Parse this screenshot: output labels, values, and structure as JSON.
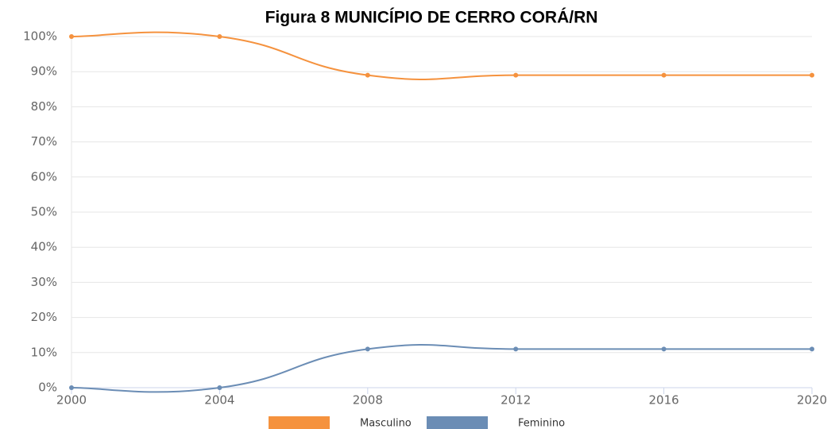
{
  "chart_data": {
    "type": "line",
    "title": "Figura 8 MUNICÍPIO DE CERRO CORÁ/RN",
    "x": [
      2000,
      2004,
      2008,
      2012,
      2016,
      2020
    ],
    "xlim": [
      2000,
      2020
    ],
    "xticks": [
      2000,
      2004,
      2008,
      2012,
      2016,
      2020
    ],
    "ylim": [
      0,
      100
    ],
    "yticks": [
      {
        "value": 0,
        "label": "0%"
      },
      {
        "value": 10,
        "label": "10%"
      },
      {
        "value": 20,
        "label": "20%"
      },
      {
        "value": 30,
        "label": "30%"
      },
      {
        "value": 40,
        "label": "40%"
      },
      {
        "value": 50,
        "label": "50%"
      },
      {
        "value": 60,
        "label": "60%"
      },
      {
        "value": 70,
        "label": "70%"
      },
      {
        "value": 80,
        "label": "80%"
      },
      {
        "value": 90,
        "label": "90%"
      },
      {
        "value": 100,
        "label": "100%"
      }
    ],
    "grid": true,
    "legend": "bottom",
    "series": [
      {
        "name": "Masculino",
        "color": "#f5923e",
        "values": [
          100,
          100,
          89,
          89,
          89,
          89
        ]
      },
      {
        "name": "Feminino",
        "color": "#6b8db5",
        "values": [
          0,
          0,
          11,
          11,
          11,
          11
        ]
      }
    ]
  }
}
